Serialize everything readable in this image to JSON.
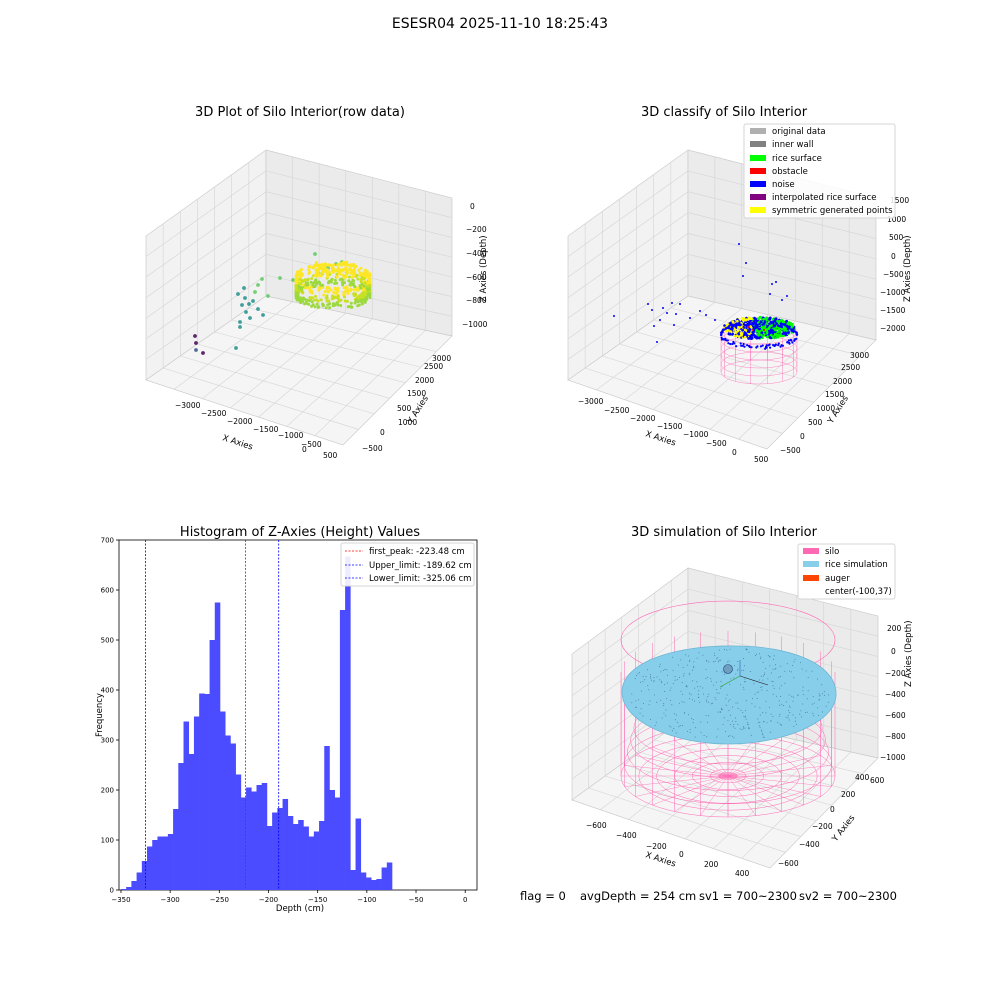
{
  "figure": {
    "suptitle": "ESESR04 2025-11-10 18:25:43",
    "footer": {
      "flag": "flag = 0",
      "avg_depth": "avgDepth = 254 cm",
      "sv1": "sv1 = 700~2300",
      "sv2": "sv2 = 700~2300"
    }
  },
  "chart_data": [
    {
      "type": "scatter",
      "title": "3D Plot of Silo Interior(row data)",
      "xlabel": "X Axies",
      "ylabel": "Y Axies",
      "zlabel": "Z Axies (Depth)",
      "x_ticks": [
        "−3000",
        "−2500",
        "−2000",
        "−1500",
        "−1000",
        "−500",
        "0",
        "500"
      ],
      "y_ticks": [
        "−500",
        "0",
        "500",
        "1000",
        "1500",
        "2000",
        "2500",
        "3000"
      ],
      "z_ticks": [
        "0",
        "−200",
        "−400",
        "−600",
        "−800",
        "−1000"
      ],
      "grid": true,
      "colormap": "viridis"
    },
    {
      "type": "scatter",
      "title": "3D classify of Silo Interior",
      "xlabel": "X Axies",
      "ylabel": "Y Axies",
      "zlabel": "Z Axies (Depth)",
      "x_ticks": [
        "−3000",
        "−2500",
        "−2000",
        "−1500",
        "−1000",
        "−500",
        "0",
        "500"
      ],
      "y_ticks": [
        "−500",
        "0",
        "500",
        "1000",
        "1500",
        "2000",
        "2500",
        "3000"
      ],
      "z_ticks": [
        "1500",
        "1000",
        "500",
        "0",
        "−500",
        "−1000",
        "−1500",
        "−2000"
      ],
      "grid": true,
      "legend_position": "top-right",
      "legend": [
        {
          "label": "original data",
          "color": "#b0b0b0"
        },
        {
          "label": "inner wall",
          "color": "#808080"
        },
        {
          "label": "rice surface",
          "color": "#00ff00"
        },
        {
          "label": "obstacle",
          "color": "#ff0000"
        },
        {
          "label": "noise",
          "color": "#0000ff"
        },
        {
          "label": "interpolated rice surface",
          "color": "#800080"
        },
        {
          "label": "symmetric generated points",
          "color": "#ffff00"
        }
      ]
    },
    {
      "type": "bar",
      "title": "Histogram of Z-Axies (Height) Values",
      "xlabel": "Depth (cm)",
      "ylabel": "Frequency",
      "xlim": [
        -352,
        12
      ],
      "ylim": [
        0,
        700
      ],
      "x_ticks": [
        -350,
        -300,
        -250,
        -200,
        -150,
        -100,
        -50,
        0
      ],
      "y_ticks": [
        0,
        100,
        200,
        300,
        400,
        500,
        600,
        700
      ],
      "bin_start": -350,
      "bin_width": 5.3,
      "counts": [
        2,
        6,
        18,
        35,
        58,
        87,
        100,
        107,
        107,
        112,
        162,
        254,
        337,
        272,
        347,
        393,
        392,
        500,
        575,
        357,
        309,
        293,
        231,
        185,
        205,
        197,
        210,
        214,
        128,
        155,
        164,
        182,
        148,
        132,
        140,
        127,
        107,
        117,
        138,
        288,
        200,
        185,
        560,
        667,
        40,
        143,
        35,
        25,
        20,
        22,
        45,
        55
      ],
      "bar_color": "#4b4bff",
      "legend_position": "top-right",
      "vlines": [
        {
          "label": "first_peak: -223.48 cm",
          "x": -223.48,
          "color": "#ff0000"
        },
        {
          "label": "Upper_limit: -189.62 cm",
          "x": -189.62,
          "color": "#0000ff"
        },
        {
          "label": "Lower_limit: -325.06 cm",
          "x": -325.06,
          "color": "#0000ff"
        }
      ]
    },
    {
      "type": "scatter",
      "title": "3D simulation of Silo Interior",
      "xlabel": "X Axies",
      "ylabel": "Y Axies",
      "zlabel": "Z Axies (Depth)",
      "x_ticks": [
        "−600",
        "−400",
        "−200",
        "0",
        "200",
        "400"
      ],
      "y_ticks": [
        "−600",
        "−400",
        "−200",
        "0",
        "200",
        "400",
        "600"
      ],
      "z_ticks": [
        "200",
        "0",
        "−200",
        "−400",
        "−600",
        "−800",
        "−1000"
      ],
      "grid": true,
      "legend_position": "top-right",
      "legend": [
        {
          "label": "silo",
          "color": "#ff69b4"
        },
        {
          "label": "rice simulation",
          "color": "#87ceeb"
        },
        {
          "label": "auger",
          "color": "#ff4500"
        },
        {
          "label": "center(-100,37)",
          "color": "none"
        }
      ]
    }
  ]
}
